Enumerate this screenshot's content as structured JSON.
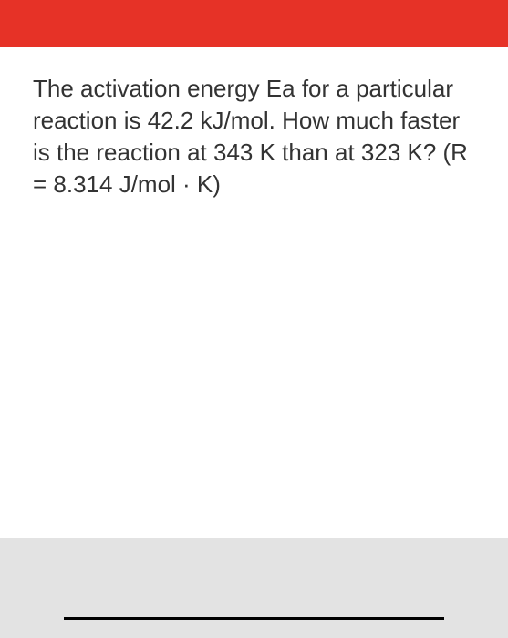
{
  "header": {
    "background_color": "#e63227"
  },
  "question": {
    "text": "The activation energy Ea for a particular reaction is 42.2 kJ/mol. How much faster is the reaction at 343 K than at 323 K? (R = 8.314 J/mol · K)",
    "font_size": 26,
    "text_color": "#333333",
    "background_color": "#ffffff"
  },
  "answer": {
    "value": "",
    "background_color": "#e3e3e3",
    "underline_color": "#000000"
  }
}
